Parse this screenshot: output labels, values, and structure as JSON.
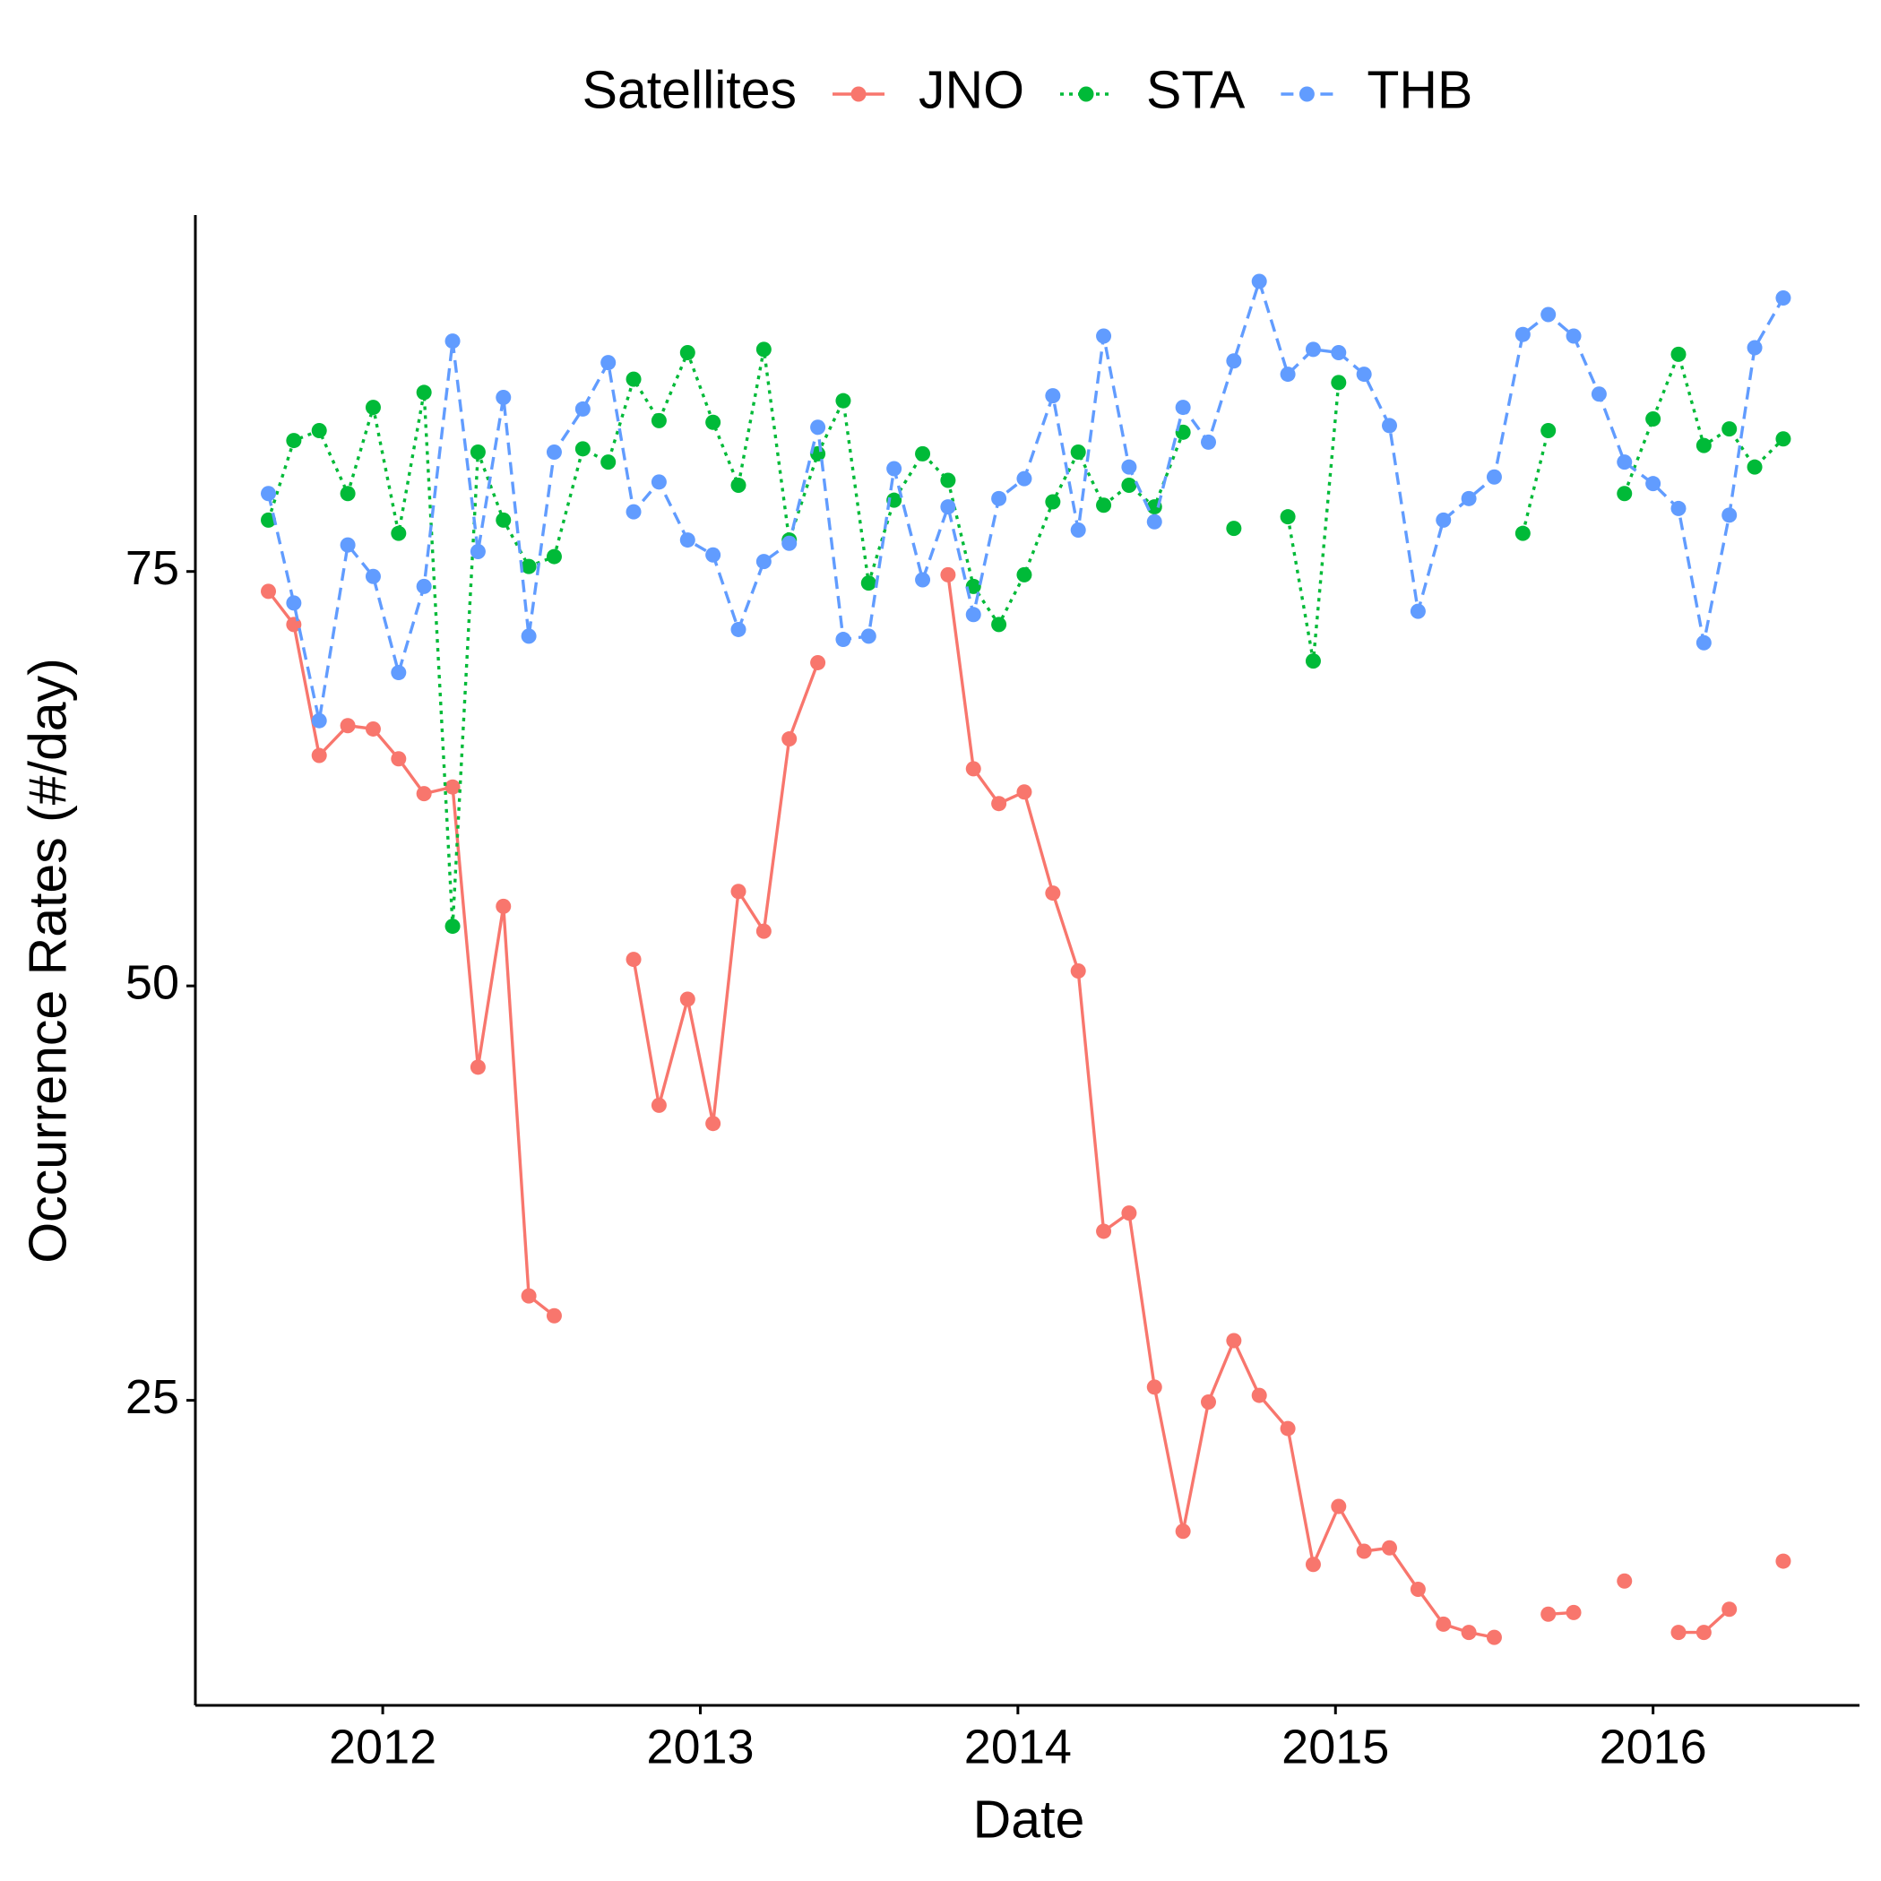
{
  "chart_data": {
    "type": "line",
    "x_label": "Date",
    "y_label": "Occurrence Rates (#/day)",
    "legend_title": "Satellites",
    "legend_position": "top",
    "grid": false,
    "x": [
      2011.64,
      2011.72,
      2011.8,
      2011.89,
      2011.97,
      2012.05,
      2012.13,
      2012.22,
      2012.3,
      2012.38,
      2012.46,
      2012.54,
      2012.63,
      2012.71,
      2012.79,
      2012.87,
      2012.96,
      2013.04,
      2013.12,
      2013.2,
      2013.28,
      2013.37,
      2013.45,
      2013.53,
      2013.61,
      2013.7,
      2013.78,
      2013.86,
      2013.94,
      2014.02,
      2014.11,
      2014.19,
      2014.27,
      2014.35,
      2014.43,
      2014.52,
      2014.6,
      2014.68,
      2014.76,
      2014.85,
      2014.93,
      2015.01,
      2015.09,
      2015.17,
      2015.26,
      2015.34,
      2015.42,
      2015.5,
      2015.59,
      2015.67,
      2015.75,
      2015.83,
      2015.91,
      2016.0,
      2016.08,
      2016.16,
      2016.24,
      2016.32,
      2016.41
    ],
    "series": [
      {
        "name": "JNO",
        "color": "#F8766D",
        "linetype": "solid",
        "values": [
          73.8,
          71.8,
          63.9,
          65.7,
          65.5,
          63.7,
          61.6,
          62.0,
          45.1,
          54.8,
          31.3,
          30.1,
          null,
          null,
          51.6,
          42.8,
          49.2,
          41.7,
          55.7,
          53.3,
          64.9,
          69.5,
          null,
          null,
          null,
          null,
          74.8,
          63.1,
          61.0,
          61.7,
          55.6,
          50.9,
          35.2,
          36.3,
          25.8,
          17.1,
          24.9,
          28.6,
          25.3,
          23.3,
          15.1,
          18.6,
          15.9,
          16.1,
          13.6,
          11.5,
          11.0,
          10.7,
          null,
          12.1,
          12.2,
          null,
          14.1,
          null,
          11.0,
          11.0,
          12.4,
          null,
          15.3
        ]
      },
      {
        "name": "STA",
        "color": "#00BA38",
        "linetype": "dotted",
        "values": [
          78.1,
          82.9,
          83.5,
          79.7,
          84.9,
          77.3,
          85.8,
          53.6,
          82.2,
          78.1,
          75.3,
          75.9,
          82.4,
          81.6,
          86.6,
          84.1,
          88.2,
          84.0,
          80.2,
          88.4,
          76.9,
          82.1,
          85.3,
          74.3,
          79.3,
          82.1,
          80.5,
          74.1,
          71.8,
          74.8,
          79.2,
          82.2,
          79.0,
          80.2,
          78.9,
          83.4,
          null,
          77.6,
          null,
          78.3,
          69.6,
          86.4,
          null,
          null,
          null,
          null,
          null,
          null,
          77.3,
          83.5,
          null,
          null,
          79.7,
          84.2,
          88.1,
          82.6,
          83.6,
          81.3,
          83.0
        ]
      },
      {
        "name": "THB",
        "color": "#619CFF",
        "linetype": "dashed",
        "values": [
          79.7,
          73.1,
          66.0,
          76.6,
          74.7,
          68.9,
          74.1,
          88.9,
          76.2,
          85.5,
          71.1,
          82.2,
          84.8,
          87.6,
          78.6,
          80.4,
          76.9,
          76.0,
          71.5,
          75.6,
          76.7,
          83.7,
          70.9,
          71.1,
          81.2,
          74.5,
          78.9,
          72.4,
          79.4,
          80.6,
          85.6,
          77.5,
          89.2,
          81.3,
          78.0,
          84.9,
          82.8,
          87.7,
          92.5,
          86.9,
          88.4,
          88.2,
          86.9,
          83.8,
          72.6,
          78.1,
          79.4,
          80.7,
          89.3,
          90.5,
          89.2,
          85.7,
          81.6,
          80.3,
          78.8,
          70.7,
          78.4,
          88.5,
          91.5
        ]
      }
    ],
    "xlim": [
      2011.41,
      2016.65
    ],
    "xticks": [
      2012,
      2013,
      2014,
      2015,
      2016
    ],
    "ylim": [
      6.6,
      96.5
    ],
    "yticks": [
      25,
      50,
      75
    ]
  }
}
